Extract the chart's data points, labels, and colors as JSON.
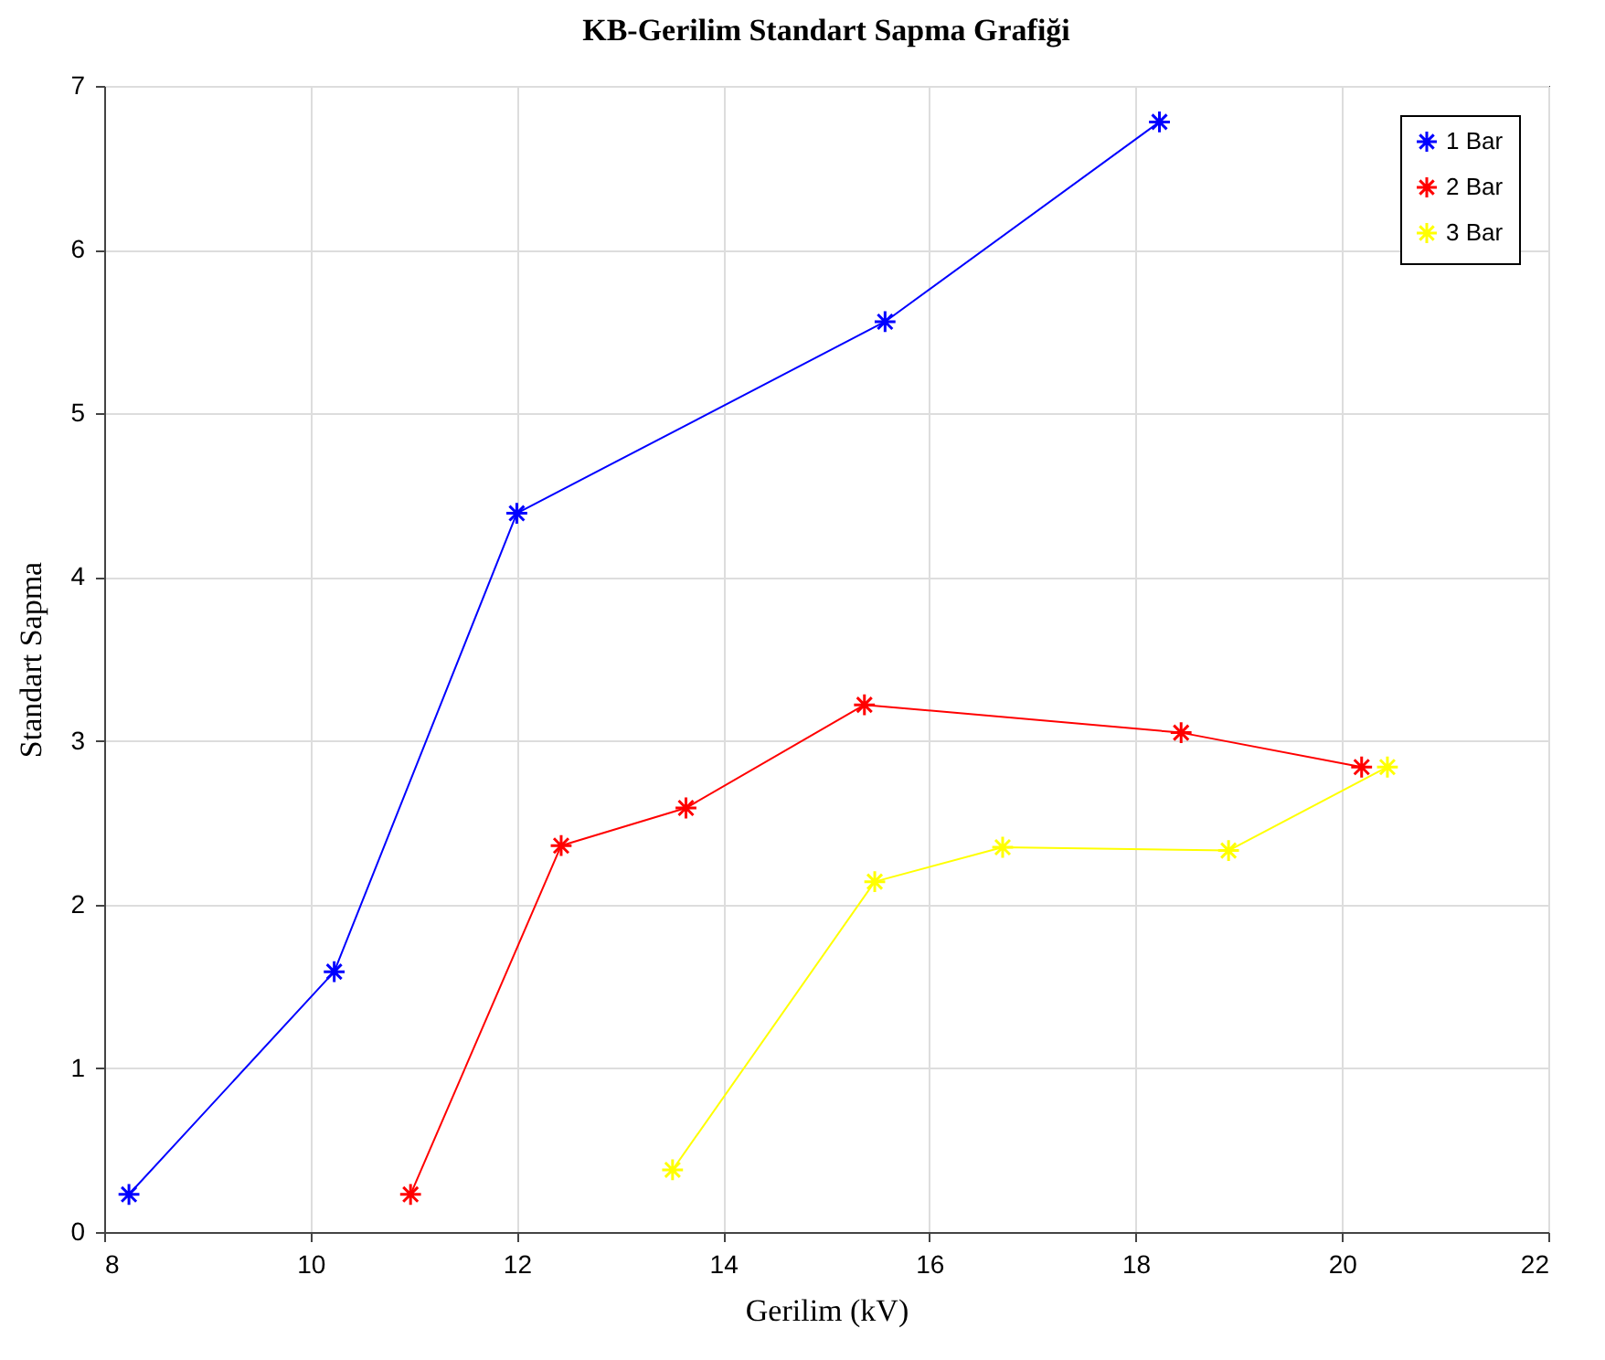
{
  "chart_data": {
    "type": "line",
    "title": "KB-Gerilim Standart Sapma Grafiği",
    "xlabel": "Gerilim (kV)",
    "ylabel": "Standart Sapma",
    "xlim": [
      8,
      22
    ],
    "xticks": [
      8,
      10,
      12,
      14,
      16,
      18,
      20,
      22
    ],
    "ylim": [
      0,
      7
    ],
    "yticks": [
      0,
      1,
      2,
      3,
      4,
      5,
      6,
      7
    ],
    "grid": true,
    "legend": "top right",
    "marker": "cross",
    "line_style": "solid",
    "series": [
      {
        "name": "1 Bar",
        "color": "#0000ff",
        "x": [
          8.24,
          10.23,
          12.0,
          15.57,
          18.23
        ],
        "values": [
          0.23,
          1.59,
          4.39,
          5.56,
          6.78
        ]
      },
      {
        "name": "2 Bar",
        "color": "#ff0000",
        "x": [
          10.97,
          12.43,
          13.64,
          15.37,
          18.44,
          20.19
        ],
        "values": [
          0.23,
          2.36,
          2.59,
          3.22,
          3.05,
          2.84
        ]
      },
      {
        "name": "3 Bar",
        "color": "#ffff00",
        "x": [
          13.51,
          15.47,
          16.71,
          18.9,
          20.44
        ],
        "values": [
          0.38,
          2.14,
          2.35,
          2.33,
          2.84
        ]
      }
    ]
  }
}
